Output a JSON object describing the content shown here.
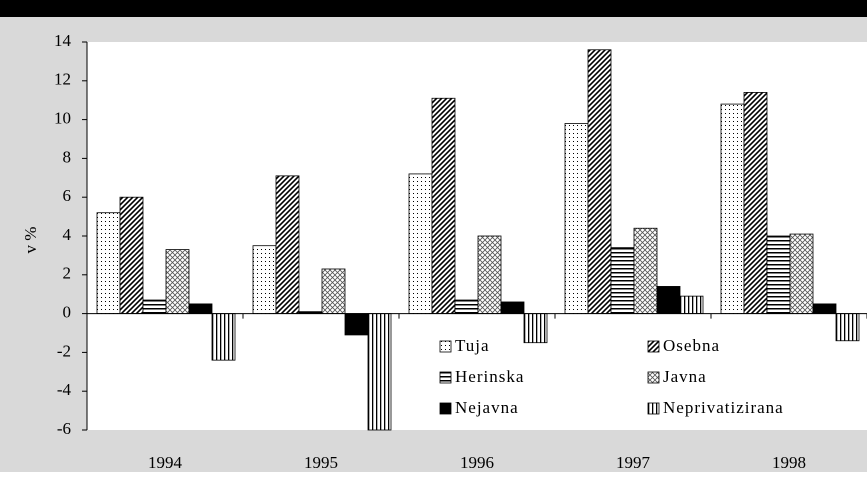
{
  "chart_data": {
    "type": "bar",
    "ylabel": "v %",
    "categories": [
      "1994",
      "1995",
      "1996",
      "1997",
      "1998"
    ],
    "series": [
      {
        "name": "Tuja",
        "color": "#000000",
        "values": [
          5.2,
          3.5,
          7.2,
          9.8,
          10.8
        ]
      },
      {
        "name": "Osebna",
        "color": "#000000",
        "values": [
          6.0,
          7.1,
          11.1,
          13.6,
          11.4
        ]
      },
      {
        "name": "Herinska",
        "color": "#000000",
        "values": [
          0.7,
          0.1,
          0.7,
          3.4,
          4.0
        ]
      },
      {
        "name": "Javna",
        "color": "#000000",
        "values": [
          3.3,
          2.3,
          4.0,
          4.4,
          4.1
        ]
      },
      {
        "name": "Nejavna",
        "color": "#000000",
        "values": [
          0.5,
          -1.1,
          0.6,
          1.4,
          0.5
        ]
      },
      {
        "name": "Neprivatizirana",
        "color": "#000000",
        "values": [
          -2.4,
          -6.0,
          -1.5,
          0.9,
          -1.4
        ]
      }
    ],
    "ylim": [
      -6,
      14
    ],
    "yticks": [
      -6,
      -4,
      -2,
      0,
      2,
      4,
      6,
      8,
      10,
      12,
      14
    ],
    "grid": false,
    "legend": "lower-right"
  }
}
